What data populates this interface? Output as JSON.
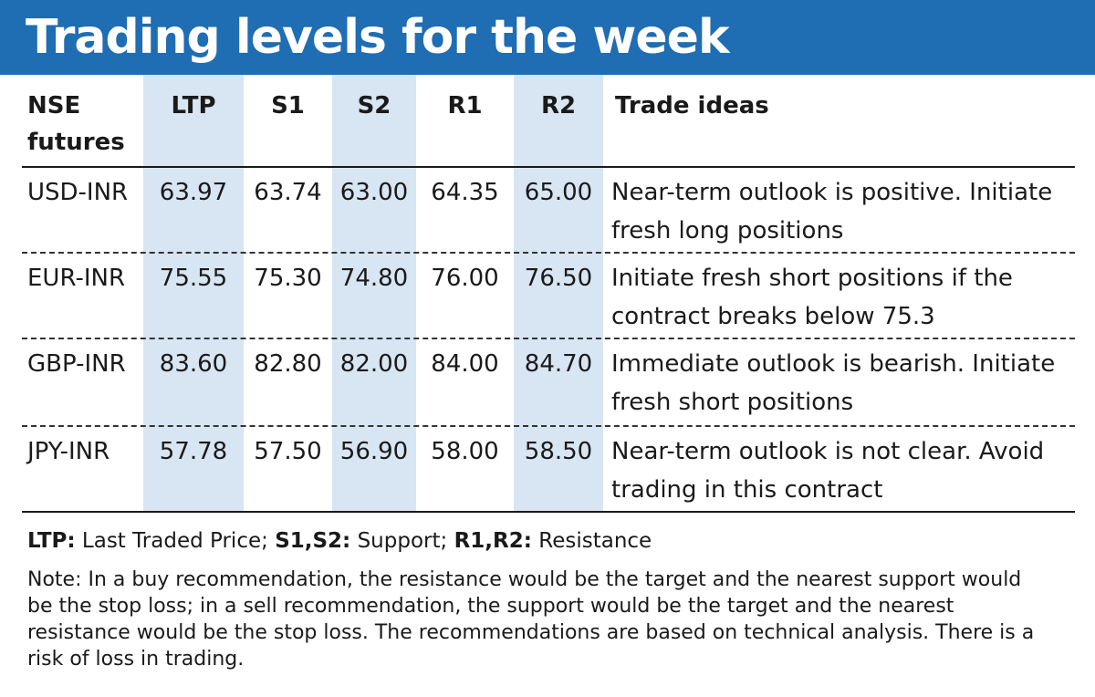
{
  "title": "Trading levels for the week",
  "columns": {
    "pair": "NSE futures",
    "ltp": "LTP",
    "s1": "S1",
    "s2": "S2",
    "r1": "R1",
    "r2": "R2",
    "ideas": "Trade ideas"
  },
  "rows": [
    {
      "pair": "USD-INR",
      "ltp": "63.97",
      "s1": "63.74",
      "s2": "63.00",
      "r1": "64.35",
      "r2": "65.00",
      "idea": "Near-term outlook is positive. Initiate fresh long positions"
    },
    {
      "pair": "EUR-INR",
      "ltp": "75.55",
      "s1": "75.30",
      "s2": "74.80",
      "r1": "76.00",
      "r2": "76.50",
      "idea": "Initiate fresh short positions if the contract breaks below 75.3"
    },
    {
      "pair": "GBP-INR",
      "ltp": "83.60",
      "s1": "82.80",
      "s2": "82.00",
      "r1": "84.00",
      "r2": "84.70",
      "idea": "Immediate outlook is bearish. Initiate fresh short positions"
    },
    {
      "pair": "JPY-INR",
      "ltp": "57.78",
      "s1": "57.50",
      "s2": "56.90",
      "r1": "58.00",
      "r2": "58.50",
      "idea": "Near-term outlook is not clear. Avoid trading in this contract"
    }
  ],
  "legend": {
    "ltp_term": "LTP:",
    "ltp_desc": " Last Traded Price; ",
    "support_term": "S1,S2:",
    "support_desc": " Support; ",
    "resistance_term": "R1,R2:",
    "resistance_desc": " Resistance"
  },
  "note": "Note: In a buy recommendation, the resistance would be the target and the nearest support would be the stop loss; in a sell recommendation, the support would be the target and the nearest resistance would be the stop loss. The recommendations are based on technical analysis. There is a risk of loss in trading.",
  "colors": {
    "title_bar": "#1f6db3",
    "column_shade": "#d8e5f3"
  }
}
